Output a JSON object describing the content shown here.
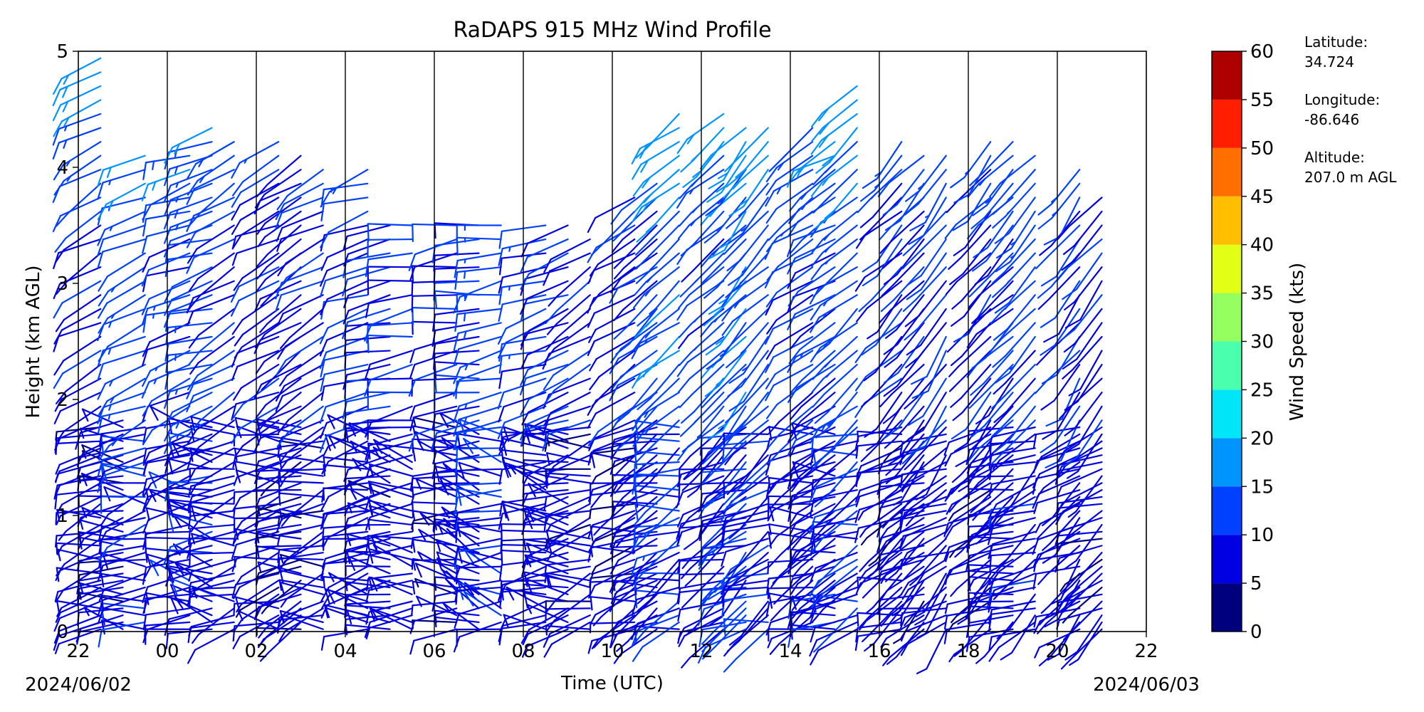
{
  "chart_data": {
    "type": "wind-barb-profile",
    "title": "RaDAPS 915 MHz Wind Profile",
    "xlabel": "Time (UTC)",
    "ylabel": "Height (km AGL)",
    "x_tick_labels": [
      "22",
      "00",
      "02",
      "04",
      "06",
      "08",
      "10",
      "12",
      "14",
      "16",
      "18",
      "20",
      "22"
    ],
    "x_range_hours": [
      -2,
      22
    ],
    "y_ticks": [
      0,
      1,
      2,
      3,
      4,
      5
    ],
    "y_tick_labels": [
      "0",
      "1",
      "2",
      "3",
      "4",
      "5"
    ],
    "ylim_km": [
      0,
      5
    ],
    "date_left": "2024/06/02",
    "date_right": "2024/06/03",
    "hour_dividers": [
      0,
      2,
      4,
      6,
      8,
      10,
      12,
      14,
      16,
      18,
      20
    ],
    "colorbar": {
      "label": "Wind Speed (kts)",
      "bounds": [
        0,
        5,
        10,
        15,
        20,
        25,
        30,
        35,
        40,
        45,
        50,
        55,
        60
      ],
      "tick_labels": [
        "0",
        "5",
        "10",
        "15",
        "20",
        "25",
        "30",
        "35",
        "40",
        "45",
        "50",
        "55",
        "60"
      ],
      "colors": [
        "#00007f",
        "#0000e3",
        "#0040ff",
        "#0094ff",
        "#00e5f8",
        "#4affad",
        "#96ff60",
        "#e2ff16",
        "#ffbe00",
        "#ff6f00",
        "#ff1e00",
        "#af0000"
      ]
    },
    "info": {
      "latitude_label": "Latitude:",
      "latitude_value": "34.724",
      "longitude_label": "Longitude:",
      "longitude_value": "-86.646",
      "altitude_label": "Altitude:",
      "altitude_value": "207.0 m AGL"
    },
    "barb_columns": [
      {
        "t": -1.5,
        "max_km": 5.0,
        "dir": 300,
        "spd": 9
      },
      {
        "t": -1.0,
        "max_km": 1.9,
        "dir": 290,
        "spd": 8
      },
      {
        "t": -0.5,
        "max_km": 4.2,
        "dir": 295,
        "spd": 12
      },
      {
        "t": 0.5,
        "max_km": 4.1,
        "dir": 290,
        "spd": 11
      },
      {
        "t": 1.0,
        "max_km": 4.4,
        "dir": 285,
        "spd": 12
      },
      {
        "t": 1.5,
        "max_km": 4.3,
        "dir": 300,
        "spd": 10
      },
      {
        "t": 2.5,
        "max_km": 4.3,
        "dir": 295,
        "spd": 9
      },
      {
        "t": 3.0,
        "max_km": 4.2,
        "dir": 305,
        "spd": 8
      },
      {
        "t": 3.5,
        "max_km": 4.0,
        "dir": 300,
        "spd": 9
      },
      {
        "t": 4.5,
        "max_km": 4.0,
        "dir": 290,
        "spd": 10
      },
      {
        "t": 5.0,
        "max_km": 3.5,
        "dir": 285,
        "spd": 9
      },
      {
        "t": 5.5,
        "max_km": 3.6,
        "dir": 280,
        "spd": 10
      },
      {
        "t": 6.5,
        "max_km": 3.5,
        "dir": 280,
        "spd": 9
      },
      {
        "t": 7.0,
        "max_km": 3.6,
        "dir": 275,
        "spd": 10
      },
      {
        "t": 7.5,
        "max_km": 3.6,
        "dir": 280,
        "spd": 13
      },
      {
        "t": 8.5,
        "max_km": 3.6,
        "dir": 285,
        "spd": 11
      },
      {
        "t": 9.0,
        "max_km": 3.5,
        "dir": 290,
        "spd": 10
      },
      {
        "t": 9.5,
        "max_km": 3.4,
        "dir": 300,
        "spd": 9
      },
      {
        "t": 10.5,
        "max_km": 3.8,
        "dir": 305,
        "spd": 9
      },
      {
        "t": 11.0,
        "max_km": 3.9,
        "dir": 310,
        "spd": 10
      },
      {
        "t": 11.5,
        "max_km": 4.5,
        "dir": 310,
        "spd": 14
      },
      {
        "t": 12.5,
        "max_km": 4.5,
        "dir": 315,
        "spd": 11
      },
      {
        "t": 13.0,
        "max_km": 4.4,
        "dir": 320,
        "spd": 14
      },
      {
        "t": 13.5,
        "max_km": 4.4,
        "dir": 315,
        "spd": 12
      },
      {
        "t": 14.5,
        "max_km": 4.4,
        "dir": 305,
        "spd": 10
      },
      {
        "t": 15.0,
        "max_km": 4.3,
        "dir": 300,
        "spd": 11
      },
      {
        "t": 15.5,
        "max_km": 4.8,
        "dir": 310,
        "spd": 13
      },
      {
        "t": 16.5,
        "max_km": 4.3,
        "dir": 315,
        "spd": 9
      },
      {
        "t": 17.0,
        "max_km": 4.2,
        "dir": 320,
        "spd": 9
      },
      {
        "t": 17.5,
        "max_km": 4.2,
        "dir": 325,
        "spd": 10
      },
      {
        "t": 18.5,
        "max_km": 4.3,
        "dir": 320,
        "spd": 9
      },
      {
        "t": 19.0,
        "max_km": 4.3,
        "dir": 315,
        "spd": 10
      },
      {
        "t": 19.5,
        "max_km": 4.2,
        "dir": 320,
        "spd": 11
      },
      {
        "t": 20.5,
        "max_km": 4.0,
        "dir": 325,
        "spd": 10
      },
      {
        "t": 21.0,
        "max_km": 3.8,
        "dir": 320,
        "spd": 9
      }
    ],
    "grid": false,
    "legend": "colorbar-right"
  }
}
